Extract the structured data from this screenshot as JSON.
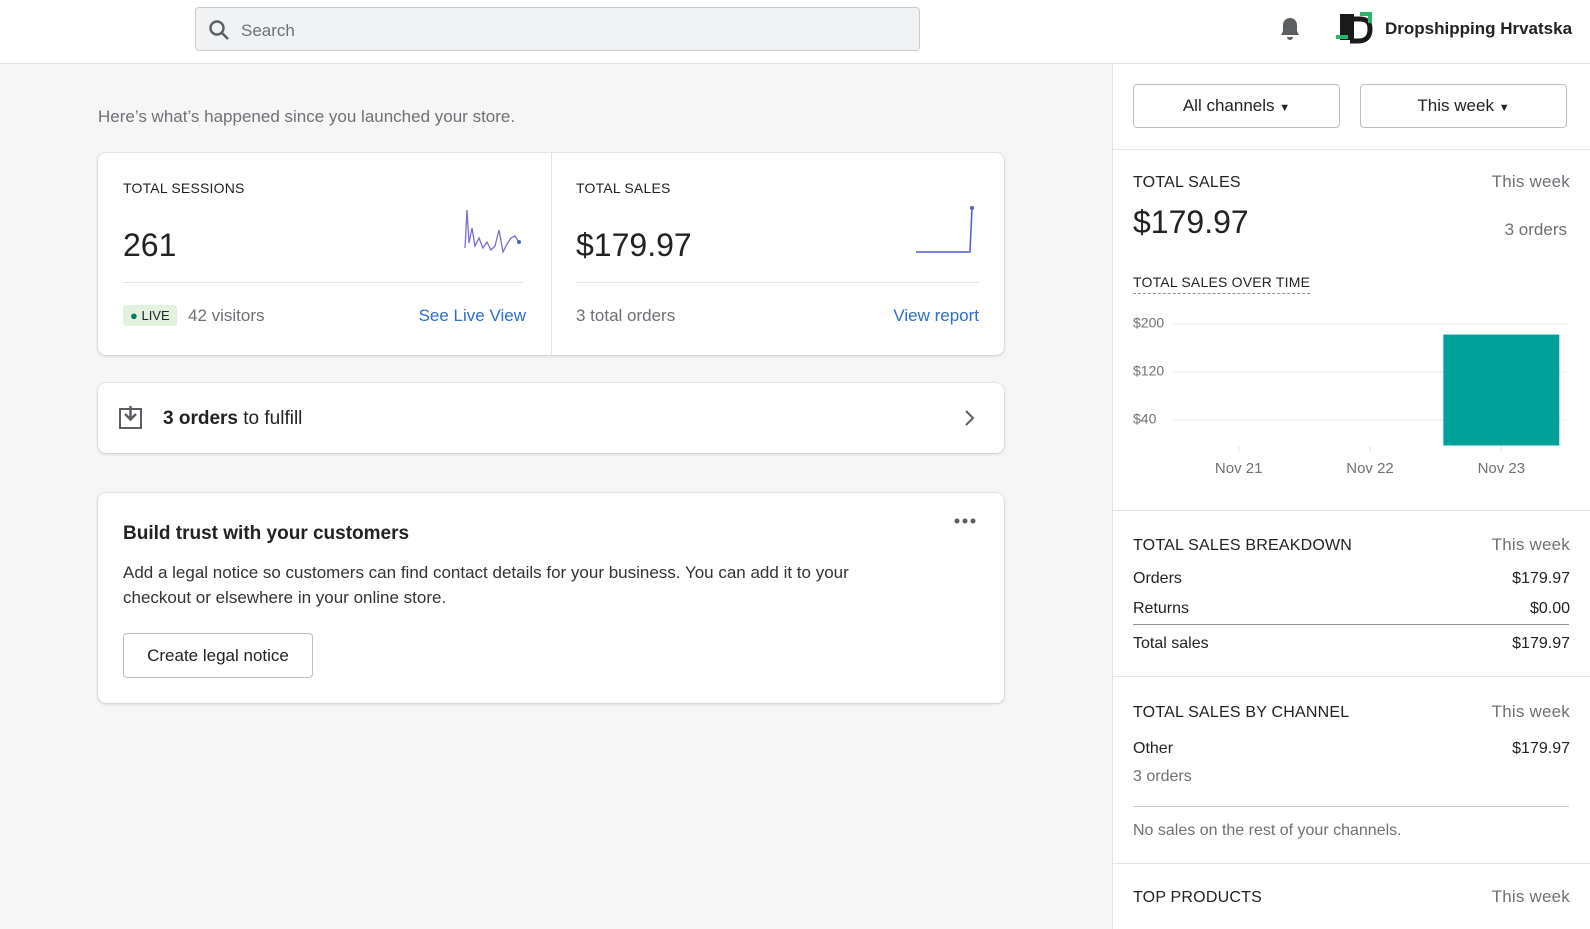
{
  "header": {
    "search_placeholder": "Search",
    "store_name": "Dropshipping Hrvatska"
  },
  "main": {
    "intro": "Here’s what’s happened since you launched your store.",
    "sessions": {
      "label": "TOTAL SESSIONS",
      "value": "261",
      "live": "LIVE",
      "visitors": "42 visitors",
      "link": "See Live View"
    },
    "sales": {
      "label": "TOTAL SALES",
      "value": "$179.97",
      "orders": "3 total orders",
      "link": "View report"
    },
    "fulfill": {
      "count": "3 orders",
      "text": "to fulfill"
    },
    "trust": {
      "title": "Build trust with your customers",
      "body": "Add a legal notice so customers can find contact details for your business. You can add it to your checkout or elsewhere in your online store.",
      "button": "Create legal notice"
    }
  },
  "sidebar": {
    "filters": [
      "All channels",
      "This week"
    ],
    "total_sales": {
      "label": "TOTAL SALES",
      "period": "This week",
      "value": "$179.97",
      "orders": "3 orders"
    },
    "breakdown": {
      "label": "TOTAL SALES BREAKDOWN",
      "period": "This week",
      "rows": [
        [
          "Orders",
          "$179.97"
        ],
        [
          "Returns",
          "$0.00"
        ],
        [
          "Total sales",
          "$179.97"
        ]
      ]
    },
    "by_channel": {
      "label": "TOTAL SALES BY CHANNEL",
      "period": "This week",
      "channel": "Other",
      "amount": "$179.97",
      "orders": "3 orders",
      "note": "No sales on the rest of your channels."
    },
    "top_products": {
      "label": "TOP PRODUCTS",
      "period": "This week"
    }
  },
  "chart_data": {
    "type": "bar",
    "title": "TOTAL SALES OVER TIME",
    "categories": [
      "Nov 21",
      "Nov 22",
      "Nov 23"
    ],
    "values": [
      0,
      0,
      179.97
    ],
    "color": "#00a09b",
    "ylim": [
      0,
      200
    ],
    "yticks": [
      {
        "value": 200,
        "label": "$200"
      },
      {
        "value": 120,
        "label": "$120"
      },
      {
        "value": 40,
        "label": "$40"
      }
    ],
    "grid": true
  }
}
